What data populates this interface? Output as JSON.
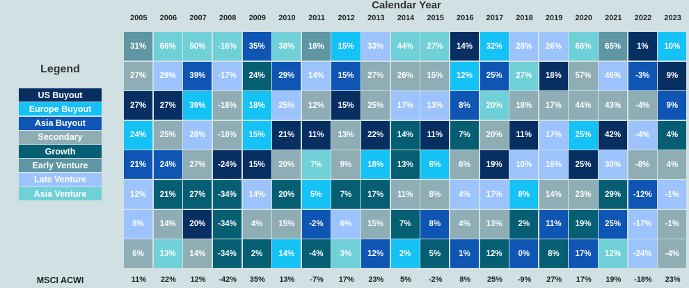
{
  "title": "Calendar Year",
  "legend": {
    "title": "Legend",
    "items": [
      {
        "label": "US Buyout",
        "key": "USB",
        "color": "#082f62"
      },
      {
        "label": "Europe Buyout",
        "key": "EUB",
        "color": "#14c2f5"
      },
      {
        "label": "Asia Buyout",
        "key": "ASB",
        "color": "#0f55b4"
      },
      {
        "label": "Secondary",
        "key": "SEC",
        "color": "#8fadb4"
      },
      {
        "label": "Growth",
        "key": "GRO",
        "color": "#065e73"
      },
      {
        "label": "Early Venture",
        "key": "EV",
        "color": "#5e96a3"
      },
      {
        "label": "Late Venture",
        "key": "LV",
        "color": "#9dc3fd"
      },
      {
        "label": "Asia Venture",
        "key": "AV",
        "color": "#6fd0d8"
      }
    ]
  },
  "msci": {
    "label": "MSCI ACWI",
    "values": [
      "11%",
      "22%",
      "12%",
      "-42%",
      "35%",
      "13%",
      "-7%",
      "17%",
      "23%",
      "5%",
      "-2%",
      "8%",
      "25%",
      "-9%",
      "27%",
      "17%",
      "19%",
      "-18%",
      "23%"
    ]
  },
  "chart_data": {
    "type": "table",
    "title": "Calendar Year",
    "columns": [
      "2005",
      "2006",
      "2007",
      "2008",
      "2009",
      "2010",
      "2011",
      "2012",
      "2013",
      "2014",
      "2015",
      "2016",
      "2017",
      "2018",
      "2019",
      "2020",
      "2021",
      "2022",
      "2023"
    ],
    "rows": [
      [
        "31%",
        "66%",
        "50%",
        "-16%",
        "35%",
        "38%",
        "16%",
        "15%",
        "33%",
        "44%",
        "27%",
        "14%",
        "32%",
        "28%",
        "26%",
        "68%",
        "65%",
        "1%",
        "10%"
      ],
      [
        "27%",
        "29%",
        "39%",
        "-17%",
        "24%",
        "29%",
        "14%",
        "15%",
        "27%",
        "26%",
        "15%",
        "12%",
        "25%",
        "27%",
        "18%",
        "57%",
        "46%",
        "-3%",
        "9%"
      ],
      [
        "27%",
        "27%",
        "39%",
        "-18%",
        "18%",
        "25%",
        "12%",
        "15%",
        "25%",
        "17%",
        "13%",
        "8%",
        "20%",
        "18%",
        "17%",
        "44%",
        "43%",
        "-4%",
        "9%"
      ],
      [
        "24%",
        "25%",
        "28%",
        "-18%",
        "15%",
        "21%",
        "11%",
        "13%",
        "22%",
        "14%",
        "11%",
        "7%",
        "20%",
        "11%",
        "17%",
        "25%",
        "42%",
        "-4%",
        "4%"
      ],
      [
        "21%",
        "24%",
        "27%",
        "-24%",
        "15%",
        "20%",
        "7%",
        "9%",
        "18%",
        "13%",
        "8%",
        "6%",
        "19%",
        "10%",
        "16%",
        "25%",
        "30%",
        "-8%",
        "4%"
      ],
      [
        "12%",
        "21%",
        "27%",
        "-34%",
        "14%",
        "20%",
        "5%",
        "7%",
        "17%",
        "11%",
        "8%",
        "4%",
        "17%",
        "8%",
        "14%",
        "23%",
        "29%",
        "-12%",
        "-1%"
      ],
      [
        "8%",
        "14%",
        "20%",
        "-34%",
        "4%",
        "15%",
        "-2%",
        "6%",
        "15%",
        "7%",
        "8%",
        "4%",
        "13%",
        "2%",
        "11%",
        "19%",
        "25%",
        "-17%",
        "-1%"
      ],
      [
        "6%",
        "13%",
        "14%",
        "-34%",
        "2%",
        "14%",
        "-4%",
        "3%",
        "12%",
        "2%",
        "5%",
        "1%",
        "12%",
        "0%",
        "8%",
        "17%",
        "12%",
        "-24%",
        "-4%"
      ]
    ],
    "cell_strategy": [
      [
        "EV",
        "AV",
        "AV",
        "AV",
        "ASB",
        "AV",
        "EV",
        "EUB",
        "LV",
        "AV",
        "AV",
        "USB",
        "EUB",
        "LV",
        "LV",
        "AV",
        "EV",
        "USB",
        "EUB"
      ],
      [
        "SEC",
        "LV",
        "ASB",
        "LV",
        "GRO",
        "ASB",
        "LV",
        "ASB",
        "SEC",
        "SEC",
        "SEC",
        "EUB",
        "ASB",
        "AV",
        "USB",
        "SEC",
        "LV",
        "ASB",
        "USB"
      ],
      [
        "USB",
        "USB",
        "EUB",
        "SEC",
        "EUB",
        "LV",
        "SEC",
        "USB",
        "SEC",
        "LV",
        "LV",
        "ASB",
        "AV",
        "SEC",
        "SEC",
        "SEC",
        "SEC",
        "SEC",
        "ASB"
      ],
      [
        "EUB",
        "SEC",
        "LV",
        "SEC",
        "EUB",
        "USB",
        "USB",
        "SEC",
        "USB",
        "GRO",
        "USB",
        "GRO",
        "SEC",
        "USB",
        "LV",
        "EUB",
        "USB",
        "LV",
        "GRO"
      ],
      [
        "ASB",
        "ASB",
        "SEC",
        "USB",
        "USB",
        "SEC",
        "AV",
        "SEC",
        "EUB",
        "GRO",
        "EUB",
        "SEC",
        "USB",
        "LV",
        "LV",
        "USB",
        "LV",
        "SEC",
        "SEC"
      ],
      [
        "LV",
        "GRO",
        "GRO",
        "GRO",
        "LV",
        "GRO",
        "EUB",
        "GRO",
        "GRO",
        "SEC",
        "SEC",
        "LV",
        "LV",
        "EUB",
        "SEC",
        "SEC",
        "GRO",
        "ASB",
        "LV"
      ],
      [
        "LV",
        "SEC",
        "USB",
        "GRO",
        "SEC",
        "SEC",
        "ASB",
        "LV",
        "SEC",
        "GRO",
        "ASB",
        "SEC",
        "SEC",
        "GRO",
        "ASB",
        "GRO",
        "ASB",
        "LV",
        "SEC"
      ],
      [
        "SEC",
        "AV",
        "SEC",
        "GRO",
        "GRO",
        "EUB",
        "GRO",
        "AV",
        "ASB",
        "EUB",
        "GRO",
        "ASB",
        "GRO",
        "ASB",
        "GRO",
        "ASB",
        "AV",
        "LV",
        "SEC"
      ]
    ]
  }
}
